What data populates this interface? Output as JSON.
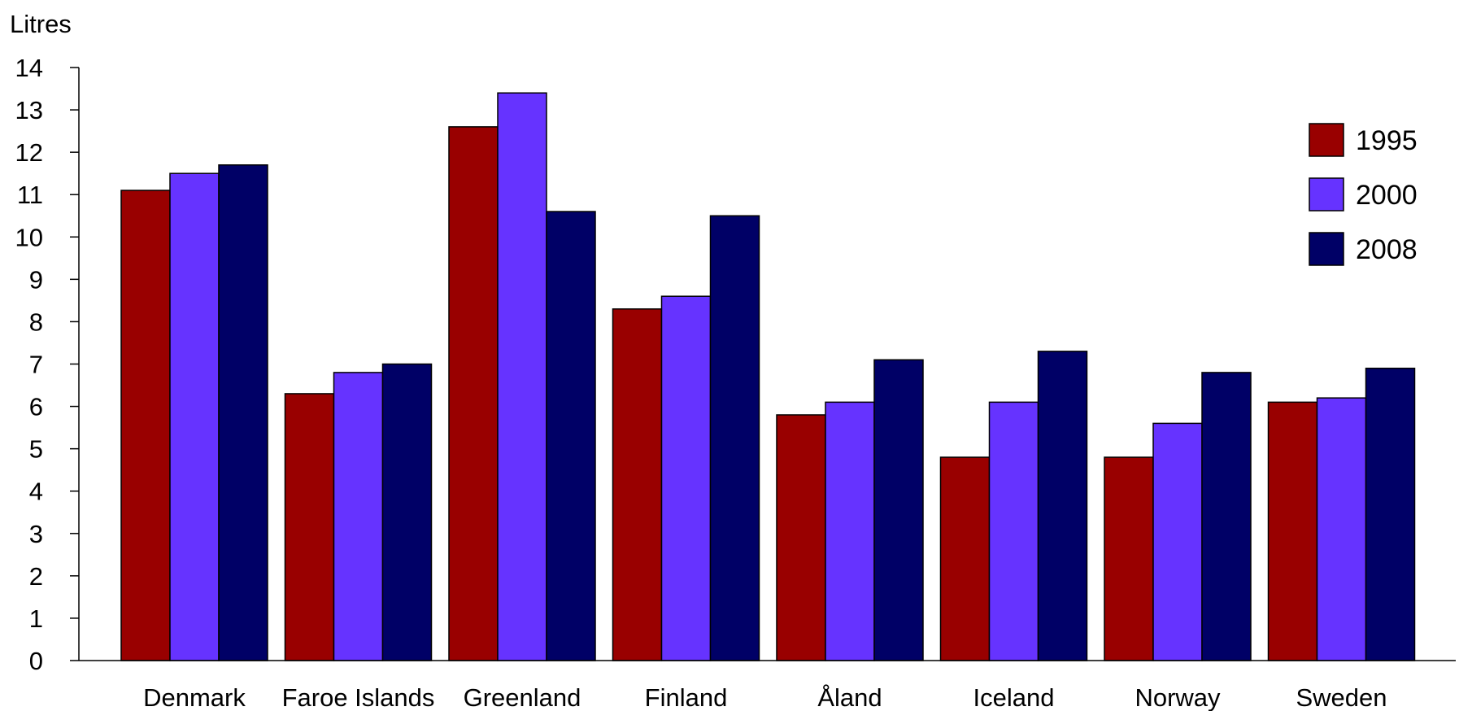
{
  "chart_data": {
    "type": "bar",
    "ylabel": "Litres",
    "xlabel": "",
    "ylim": [
      0,
      14
    ],
    "y_ticks": [
      0,
      1,
      2,
      3,
      4,
      5,
      6,
      7,
      8,
      9,
      10,
      11,
      12,
      13,
      14
    ],
    "grid": false,
    "legend_position": "top-right",
    "categories": [
      "Denmark",
      "Faroe Islands",
      "Greenland",
      "Finland",
      "Åland",
      "Iceland",
      "Norway",
      "Sweden"
    ],
    "series": [
      {
        "name": "1995",
        "color": "#990000",
        "values": [
          11.1,
          6.3,
          12.6,
          8.3,
          5.8,
          4.8,
          4.8,
          6.1
        ]
      },
      {
        "name": "2000",
        "color": "#6633ff",
        "values": [
          11.5,
          6.8,
          13.4,
          8.6,
          6.1,
          6.1,
          5.6,
          6.2
        ]
      },
      {
        "name": "2008",
        "color": "#000066",
        "values": [
          11.7,
          7.0,
          10.6,
          10.5,
          7.1,
          7.3,
          6.8,
          6.9
        ]
      }
    ]
  }
}
